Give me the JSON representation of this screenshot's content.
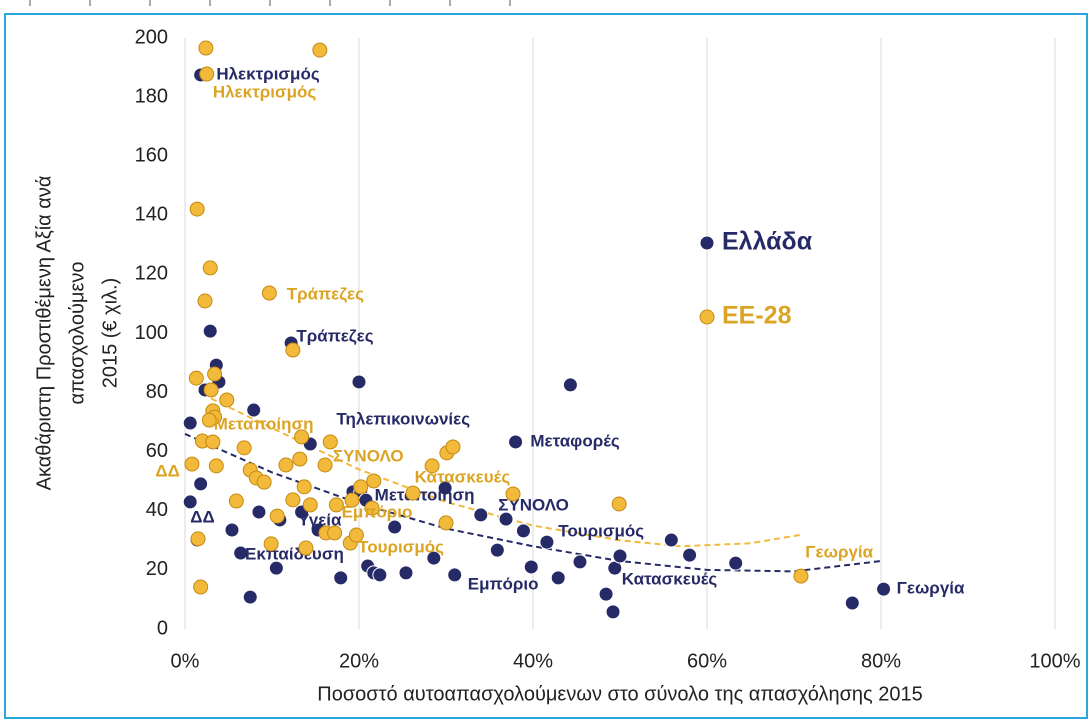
{
  "chart_data": {
    "type": "scatter",
    "xlabel": "Ποσοστό αυτοαπασχολούμενων στο σύνολο της απασχόλησης 2015",
    "ylabel": [
      "Ακαθάριστη Προστιθέμενη Αξία ανά",
      "απασχολούμενο",
      "2015 (€ χιλ.)"
    ],
    "xlim": [
      0,
      100
    ],
    "xticks": [
      {
        "value": 0,
        "label": "0%"
      },
      {
        "value": 20,
        "label": "20%"
      },
      {
        "value": 40,
        "label": "40%"
      },
      {
        "value": 60,
        "label": "60%"
      },
      {
        "value": 80,
        "label": "80%"
      },
      {
        "value": 100,
        "label": "100%"
      }
    ],
    "ylim": [
      0,
      200
    ],
    "yticks": [
      0,
      20,
      40,
      60,
      80,
      100,
      120,
      140,
      160,
      180,
      200
    ],
    "grid": "x",
    "series": [
      {
        "name": "Ελλάδα",
        "color": "#262a66",
        "x": [
          1.8,
          2.9,
          3.6,
          3.9,
          2.3,
          20,
          44.3,
          12.2,
          7.9,
          0.6,
          14.4,
          38,
          1.8,
          0.6,
          5.4,
          6.4,
          1.4,
          10.5,
          7.5,
          8.5,
          10.9,
          13.4,
          15.3,
          17.9,
          19.3,
          20.2,
          21,
          21.7,
          22.4,
          20.8,
          24.1,
          25.4,
          28.6,
          31,
          29.9,
          34,
          35.9,
          36.9,
          38.9,
          39.8,
          41.6,
          42.9,
          45.4,
          48.4,
          49.2,
          49.4,
          50,
          55.9,
          58,
          63.3,
          76.7,
          80.3
        ],
        "values": [
          187.5,
          100.8,
          89.3,
          83.6,
          80.9,
          83.6,
          82.6,
          96.8,
          74.1,
          69.7,
          62.6,
          63.3,
          49.1,
          43,
          33.5,
          25.7,
          30.1,
          20.6,
          10.8,
          39.6,
          36.9,
          39.6,
          33.5,
          17.3,
          46.4,
          46.4,
          21.3,
          19,
          18.3,
          43.6,
          34.5,
          19,
          24,
          18.3,
          47.7,
          38.6,
          26.7,
          37.2,
          33.2,
          21,
          29.4,
          17.3,
          22.7,
          11.8,
          5.8,
          20.6,
          24.7,
          30.1,
          25,
          22.3,
          8.8,
          13.5
        ],
        "trend": {
          "x": [
            0,
            10,
            20,
            30,
            40,
            50,
            60,
            70,
            80
          ],
          "values": [
            66,
            53,
            42.5,
            34,
            28,
            23,
            20,
            19.5,
            23
          ]
        },
        "labels": [
          {
            "text": "Ηλεκτρισμός",
            "x": 3.6,
            "y": 187.5
          },
          {
            "text": "Τράπεζες",
            "x": 12.8,
            "y": 98.8
          },
          {
            "text": "Τηλεπικοινωνίες",
            "x": 17.4,
            "y": 70.7
          },
          {
            "text": "Μεταφορές",
            "x": 39.7,
            "y": 63.3
          },
          {
            "text": "Μεταποίηση",
            "x": 21.8,
            "y": 45
          },
          {
            "text": "ΣΥΝΟΛΟ",
            "x": 36,
            "y": 41.6
          },
          {
            "text": "ΔΔ",
            "x": 0.6,
            "y": 37.6
          },
          {
            "text": "Υγεία",
            "x": 13,
            "y": 36.5
          },
          {
            "text": "Εκπαίδευση",
            "x": 6.9,
            "y": 25
          },
          {
            "text": "Τουρισμός",
            "x": 42.9,
            "y": 32.8
          },
          {
            "text": "Εμπόριο",
            "x": 32.5,
            "y": 14.9
          },
          {
            "text": "Κατασκευές",
            "x": 50.2,
            "y": 16.6
          },
          {
            "text": "Γεωργία",
            "x": 81.8,
            "y": 13.5
          }
        ]
      },
      {
        "name": "ΕΕ-28",
        "color": "#f2b93b",
        "x": [
          2.4,
          15.5,
          2.5,
          1.4,
          2.9,
          2.3,
          9.7,
          12.4,
          1.3,
          3.4,
          3,
          4.8,
          3.2,
          3.4,
          2.8,
          2,
          3.2,
          6.8,
          13.4,
          16.7,
          0.8,
          3.6,
          7.5,
          8.2,
          9.1,
          11.6,
          13.2,
          13.7,
          16.1,
          5.9,
          12.4,
          14.4,
          17.4,
          19.2,
          20.2,
          21.7,
          21.5,
          1.5,
          1.8,
          9.9,
          10.6,
          13.9,
          16.2,
          17.2,
          19,
          19.7,
          28.4,
          30.1,
          30.8,
          26.2,
          30,
          37.7,
          49.9,
          70.8
        ],
        "values": [
          196.6,
          195.9,
          187.8,
          142.1,
          122.2,
          111,
          113.7,
          94.4,
          84.9,
          86.3,
          80.9,
          77.5,
          73.8,
          71.7,
          70.7,
          63.6,
          63.3,
          61.3,
          65,
          63.3,
          55.8,
          55.2,
          53.8,
          51.1,
          49.7,
          55.5,
          57.5,
          48.1,
          55.5,
          43.3,
          43.7,
          42,
          42,
          43.6,
          48.1,
          50.1,
          40.9,
          30.5,
          14.2,
          28.8,
          38.2,
          27.4,
          32.5,
          32.5,
          29.1,
          31.8,
          55.2,
          59.6,
          61.6,
          46,
          35.9,
          45.7,
          42.3,
          17.9
        ],
        "trend": {
          "x": [
            3,
            10,
            20,
            30,
            40,
            50,
            57,
            65,
            71
          ],
          "values": [
            78,
            68,
            54,
            43,
            35,
            30,
            28,
            29,
            32
          ]
        },
        "labels": [
          {
            "text": "Ηλεκτρισμός",
            "x": 3.2,
            "y": 181.4
          },
          {
            "text": "Τράπεζες",
            "x": 11.7,
            "y": 113
          },
          {
            "text": "Μεταποίηση",
            "x": 3.3,
            "y": 69
          },
          {
            "text": "ΣΥΝΟΛΟ",
            "x": 17,
            "y": 58.2
          },
          {
            "text": "ΔΔ",
            "x": -3.4,
            "y": 53.1
          },
          {
            "text": "Κατασκευές",
            "x": 26.4,
            "y": 51.1
          },
          {
            "text": "Εμπόριο",
            "x": 18,
            "y": 39.3
          },
          {
            "text": "Τουρισμός",
            "x": 19.9,
            "y": 27.4
          },
          {
            "text": "Γεωργία",
            "x": 71.3,
            "y": 25.7
          }
        ]
      }
    ]
  }
}
